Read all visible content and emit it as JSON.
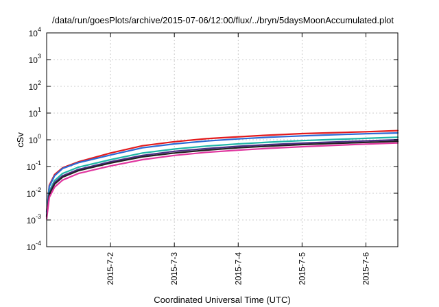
{
  "chart_data": {
    "type": "line",
    "title": "/data/run/goesPlots/archive/2015-07-06/12:00/flux/../bryn/5daysMoonAccumulated.plot",
    "xlabel": "Coordinated Universal Time (UTC)",
    "ylabel": "cSv",
    "yscale": "log",
    "ylim": [
      0.0001,
      10000
    ],
    "xlim": [
      "2015-07-01T00:00",
      "2015-07-06T12:00"
    ],
    "grid": true,
    "x_ticks": [
      "2015-7-2",
      "2015-7-3",
      "2015-7-4",
      "2015-7-5",
      "2015-7-6"
    ],
    "y_ticks": [
      {
        "base": "10",
        "exp": "-4"
      },
      {
        "base": "10",
        "exp": "-3"
      },
      {
        "base": "10",
        "exp": "-2"
      },
      {
        "base": "10",
        "exp": "-1"
      },
      {
        "base": "10",
        "exp": "0"
      },
      {
        "base": "10",
        "exp": "1"
      },
      {
        "base": "10",
        "exp": "2"
      },
      {
        "base": "10",
        "exp": "3"
      },
      {
        "base": "10",
        "exp": "4"
      }
    ],
    "x": [
      "2015-07-01T00:00",
      "2015-07-01T01:00",
      "2015-07-01T03:00",
      "2015-07-01T06:00",
      "2015-07-01T12:00",
      "2015-07-02T00:00",
      "2015-07-02T12:00",
      "2015-07-03T00:00",
      "2015-07-03T12:00",
      "2015-07-04T00:00",
      "2015-07-04T12:00",
      "2015-07-05T00:00",
      "2015-07-05T12:00",
      "2015-07-06T00:00",
      "2015-07-06T12:00"
    ],
    "series": [
      {
        "color": "#e31a1c",
        "values": [
          0.002,
          0.02,
          0.05,
          0.09,
          0.15,
          0.32,
          0.6,
          0.85,
          1.1,
          1.3,
          1.5,
          1.7,
          1.85,
          2.0,
          2.2
        ]
      },
      {
        "color": "#2a6bd6",
        "values": [
          0.002,
          0.018,
          0.045,
          0.085,
          0.14,
          0.27,
          0.5,
          0.7,
          0.9,
          1.08,
          1.25,
          1.4,
          1.55,
          1.68,
          1.8
        ]
      },
      {
        "color": "#1fb5a7",
        "values": [
          0.0015,
          0.012,
          0.03,
          0.055,
          0.095,
          0.18,
          0.32,
          0.45,
          0.58,
          0.7,
          0.82,
          0.93,
          1.03,
          1.13,
          1.25
        ]
      },
      {
        "color": "#4b2d83",
        "values": [
          0.0014,
          0.01,
          0.025,
          0.045,
          0.078,
          0.15,
          0.26,
          0.37,
          0.47,
          0.57,
          0.66,
          0.75,
          0.83,
          0.91,
          1.0
        ]
      },
      {
        "color": "#222222",
        "values": [
          0.0013,
          0.009,
          0.022,
          0.04,
          0.07,
          0.135,
          0.23,
          0.32,
          0.41,
          0.5,
          0.58,
          0.66,
          0.73,
          0.8,
          0.88
        ]
      },
      {
        "color": "#e0369f",
        "values": [
          0.0011,
          0.007,
          0.017,
          0.031,
          0.055,
          0.105,
          0.18,
          0.26,
          0.34,
          0.41,
          0.48,
          0.55,
          0.62,
          0.69,
          0.76
        ]
      }
    ]
  }
}
